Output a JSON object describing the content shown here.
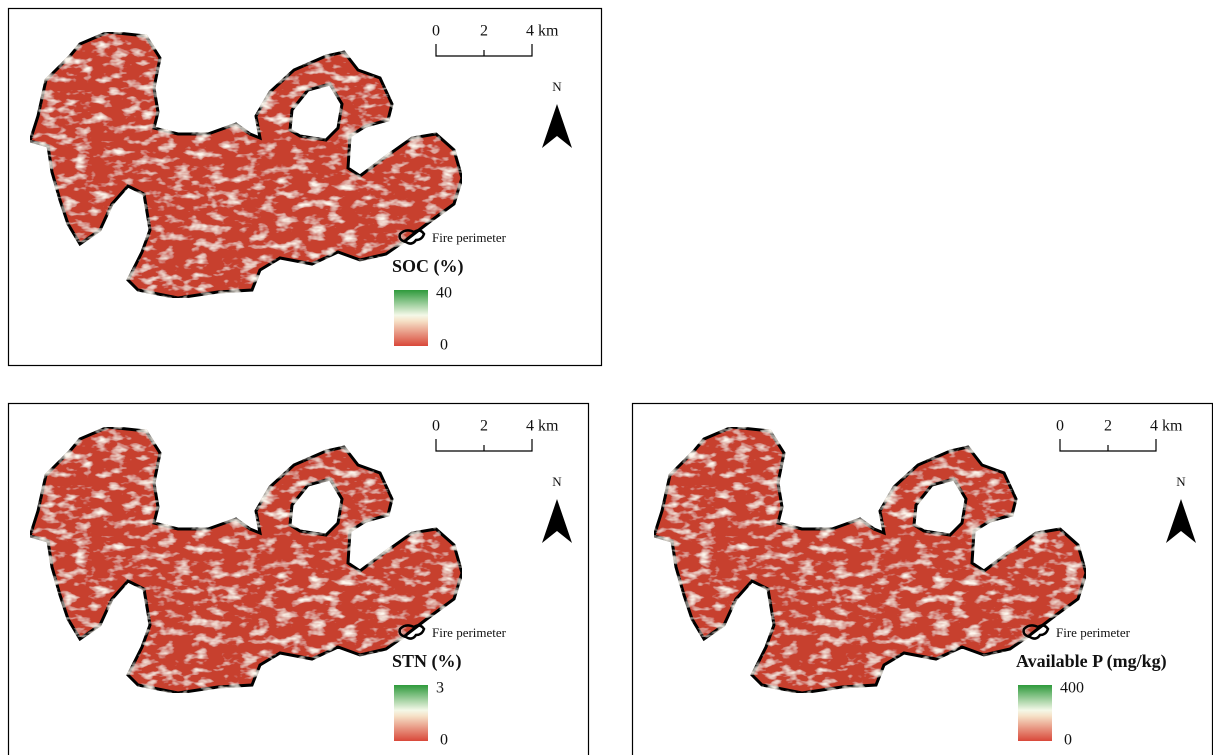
{
  "panels": [
    {
      "scale": [
        "0",
        "2",
        "4 km"
      ],
      "north": "N",
      "legend": {
        "perimeter": "Fire perimeter",
        "title": "SOC (%)",
        "max": "40",
        "min": "0"
      }
    },
    {
      "scale": [
        "0",
        "2",
        "4 km"
      ],
      "north": "N",
      "legend": {
        "perimeter": "Fire perimeter",
        "title": "STN (%)",
        "max": "3",
        "min": "0"
      }
    },
    {
      "scale": [
        "0",
        "2",
        "4 km"
      ],
      "north": "N",
      "legend": {
        "perimeter": "Fire perimeter",
        "title": "Available P (mg/kg)",
        "max": "400",
        "min": "0"
      }
    }
  ]
}
